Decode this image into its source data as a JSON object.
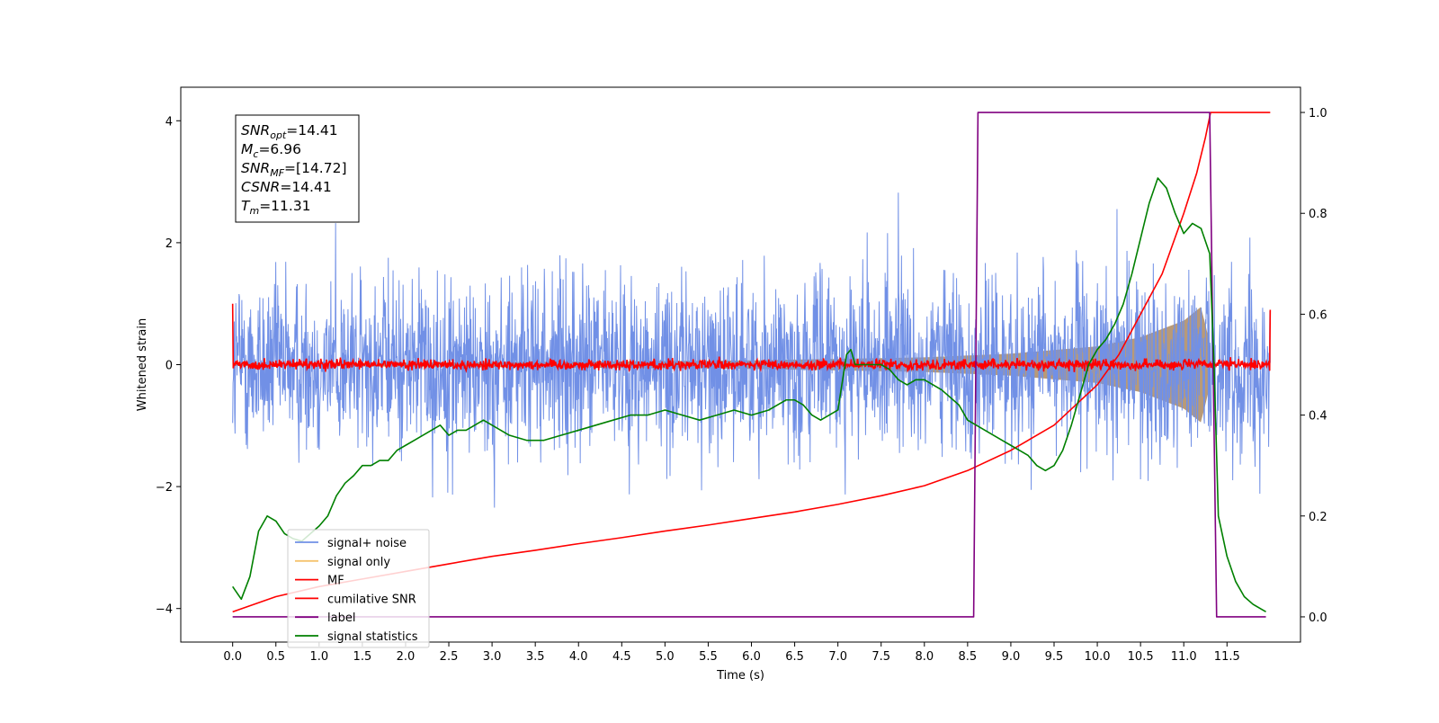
{
  "chart_data": {
    "type": "line",
    "xlabel": "Time (s)",
    "ylabel": "Whitened strain",
    "xlim": [
      -0.6,
      12.35
    ],
    "ylim": [
      -4.55,
      4.55
    ],
    "ylim_right": [
      -0.05,
      1.05
    ],
    "x_ticks": [
      "0.0",
      "0.5",
      "1.0",
      "1.5",
      "2.0",
      "2.5",
      "3.0",
      "3.5",
      "4.0",
      "4.5",
      "5.0",
      "5.5",
      "6.0",
      "6.5",
      "7.0",
      "7.5",
      "8.0",
      "8.5",
      "9.0",
      "9.5",
      "10.0",
      "10.5",
      "11.0",
      "11.5"
    ],
    "y_ticks_left": [
      "4",
      "2",
      "0",
      "−2",
      "−4"
    ],
    "y_ticks_right": [
      "1.0",
      "0.8",
      "0.6",
      "0.4",
      "0.2",
      "0.0"
    ],
    "legend_position": "lower-left",
    "annotation": {
      "lines": [
        {
          "base": "SNR",
          "sub": "opt",
          "value": "=14.41"
        },
        {
          "base": "M",
          "sub": "c",
          "value": "=6.96"
        },
        {
          "base": "SNR",
          "sub": "MF",
          "value": "=[14.72]"
        },
        {
          "base": "CSNR",
          "sub": "",
          "value": "=14.41"
        },
        {
          "base": "T",
          "sub": "m",
          "value": "=11.31"
        }
      ]
    },
    "series": [
      {
        "name": "signal+ noise",
        "color": "#7190e6",
        "axis": "left",
        "style": "noise band",
        "x_range": [
          0.0,
          12.0
        ],
        "envelope_approx": [
          -2.7,
          3.0
        ]
      },
      {
        "name": "signal only",
        "color": "#f5c36e",
        "axis": "left",
        "style": "chirp envelope",
        "merge_time": 11.31,
        "envelope": {
          "x": [
            0,
            3,
            6,
            8,
            9,
            10,
            10.5,
            11,
            11.2,
            11.31
          ],
          "y": [
            0.02,
            0.04,
            0.07,
            0.12,
            0.18,
            0.3,
            0.45,
            0.72,
            0.95,
            0.3
          ]
        }
      },
      {
        "name": "MF",
        "color": "#ff0000",
        "axis": "left",
        "style": "noise around zero",
        "x_range": [
          0.0,
          12.0
        ],
        "amplitude_approx": 0.1
      },
      {
        "name": "cumilative SNR",
        "color": "#ff0000",
        "axis": "right",
        "x": [
          0.0,
          0.5,
          1.0,
          1.5,
          2.0,
          2.5,
          3.0,
          3.5,
          4.0,
          4.5,
          5.0,
          5.5,
          6.0,
          6.5,
          7.0,
          7.5,
          8.0,
          8.5,
          9.0,
          9.5,
          10.0,
          10.25,
          10.5,
          10.75,
          11.0,
          11.15,
          11.25,
          11.31,
          12.0
        ],
        "y": [
          0.01,
          0.04,
          0.06,
          0.075,
          0.09,
          0.105,
          0.12,
          0.132,
          0.145,
          0.157,
          0.17,
          0.182,
          0.195,
          0.208,
          0.223,
          0.24,
          0.26,
          0.29,
          0.33,
          0.38,
          0.46,
          0.52,
          0.6,
          0.68,
          0.8,
          0.88,
          0.95,
          1.0,
          1.0
        ]
      },
      {
        "name": "label",
        "color": "#800080",
        "axis": "right",
        "x": [
          0.0,
          8.57,
          8.62,
          11.3,
          11.38,
          11.95
        ],
        "y": [
          0.0,
          0.0,
          1.0,
          1.0,
          0.0,
          0.0
        ]
      },
      {
        "name": "signal statistics",
        "color": "#008000",
        "axis": "right",
        "x": [
          0.0,
          0.1,
          0.2,
          0.3,
          0.4,
          0.5,
          0.6,
          0.7,
          0.8,
          0.9,
          1.0,
          1.1,
          1.2,
          1.3,
          1.4,
          1.5,
          1.6,
          1.7,
          1.8,
          1.9,
          2.0,
          2.1,
          2.2,
          2.3,
          2.4,
          2.5,
          2.6,
          2.7,
          2.8,
          2.9,
          3.0,
          3.2,
          3.4,
          3.6,
          3.8,
          4.0,
          4.2,
          4.4,
          4.6,
          4.8,
          5.0,
          5.2,
          5.4,
          5.6,
          5.8,
          6.0,
          6.2,
          6.4,
          6.5,
          6.6,
          6.7,
          6.8,
          6.9,
          7.0,
          7.1,
          7.15,
          7.2,
          7.3,
          7.4,
          7.5,
          7.6,
          7.7,
          7.8,
          7.9,
          8.0,
          8.2,
          8.4,
          8.5,
          8.6,
          8.7,
          8.8,
          8.9,
          9.0,
          9.1,
          9.2,
          9.3,
          9.4,
          9.5,
          9.6,
          9.7,
          9.8,
          9.9,
          10.0,
          10.1,
          10.2,
          10.3,
          10.4,
          10.5,
          10.6,
          10.7,
          10.8,
          10.9,
          11.0,
          11.1,
          11.2,
          11.3,
          11.35,
          11.4,
          11.5,
          11.6,
          11.7,
          11.8,
          11.9,
          11.95
        ],
        "y": [
          0.06,
          0.035,
          0.08,
          0.17,
          0.2,
          0.19,
          0.165,
          0.155,
          0.15,
          0.165,
          0.18,
          0.2,
          0.24,
          0.265,
          0.28,
          0.3,
          0.3,
          0.31,
          0.31,
          0.33,
          0.34,
          0.35,
          0.36,
          0.37,
          0.38,
          0.36,
          0.37,
          0.37,
          0.38,
          0.39,
          0.38,
          0.36,
          0.35,
          0.35,
          0.36,
          0.37,
          0.38,
          0.39,
          0.4,
          0.4,
          0.41,
          0.4,
          0.39,
          0.4,
          0.41,
          0.4,
          0.41,
          0.43,
          0.43,
          0.42,
          0.4,
          0.39,
          0.4,
          0.41,
          0.52,
          0.53,
          0.5,
          0.5,
          0.5,
          0.5,
          0.49,
          0.47,
          0.46,
          0.47,
          0.47,
          0.45,
          0.42,
          0.39,
          0.38,
          0.37,
          0.36,
          0.35,
          0.34,
          0.33,
          0.32,
          0.3,
          0.29,
          0.3,
          0.33,
          0.38,
          0.44,
          0.5,
          0.53,
          0.55,
          0.58,
          0.62,
          0.68,
          0.75,
          0.82,
          0.87,
          0.85,
          0.8,
          0.76,
          0.78,
          0.77,
          0.72,
          0.5,
          0.2,
          0.12,
          0.07,
          0.04,
          0.025,
          0.015,
          0.01
        ]
      }
    ]
  }
}
